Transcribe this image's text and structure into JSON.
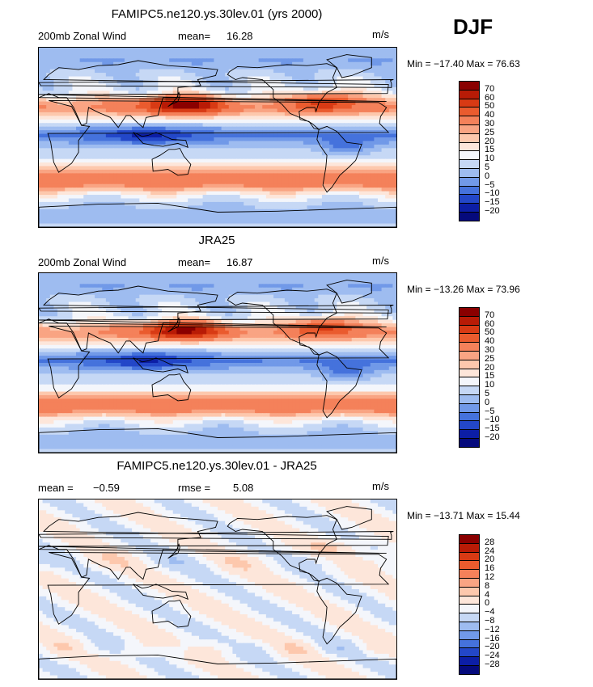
{
  "season": "DJF",
  "chart_data": [
    {
      "type": "heatmap",
      "title": "FAMIPC5.ne120.ys.30lev.01 (yrs 2000)",
      "left_label": "200mb Zonal Wind",
      "stat1_label": "mean=",
      "stat1_value": "16.28",
      "units": "m/s",
      "minmax": "Min = −17.40 Max =  76.63",
      "field": "model",
      "legend_labels": [
        "70",
        "60",
        "50",
        "40",
        "30",
        "25",
        "20",
        "15",
        "10",
        "5",
        "0",
        "−5",
        "−10",
        "−15",
        "−20"
      ],
      "legend_colors": [
        "#8a0000",
        "#b81b06",
        "#d83a14",
        "#ea5b2e",
        "#f4815a",
        "#f9a483",
        "#fdc8ad",
        "#fde6da",
        "#f4f6fb",
        "#c6d8f5",
        "#9ebcf0",
        "#7199e8",
        "#4572dc",
        "#2347c8",
        "#0c1ea6",
        "#050a7c"
      ]
    },
    {
      "type": "heatmap",
      "title": "JRA25",
      "left_label": "200mb Zonal Wind",
      "stat1_label": "mean=",
      "stat1_value": "16.87",
      "units": "m/s",
      "minmax": "Min = −13.26 Max =  73.96",
      "field": "obs",
      "legend_labels": [
        "70",
        "60",
        "50",
        "40",
        "30",
        "25",
        "20",
        "15",
        "10",
        "5",
        "0",
        "−5",
        "−10",
        "−15",
        "−20"
      ],
      "legend_colors": [
        "#8a0000",
        "#b81b06",
        "#d83a14",
        "#ea5b2e",
        "#f4815a",
        "#f9a483",
        "#fdc8ad",
        "#fde6da",
        "#f4f6fb",
        "#c6d8f5",
        "#9ebcf0",
        "#7199e8",
        "#4572dc",
        "#2347c8",
        "#0c1ea6",
        "#050a7c"
      ]
    },
    {
      "type": "heatmap",
      "title": "FAMIPC5.ne120.ys.30lev.01 - JRA25",
      "stat1_label": "mean =",
      "stat1_value": "−0.59",
      "stat2_label": "rmse =",
      "stat2_value": "5.08",
      "units": "m/s",
      "minmax": "Min = −13.71 Max =  15.44",
      "field": "diff",
      "legend_labels": [
        "28",
        "24",
        "20",
        "16",
        "12",
        "8",
        "4",
        "0",
        "−4",
        "−8",
        "−12",
        "−16",
        "−20",
        "−24",
        "−28"
      ],
      "legend_colors": [
        "#8a0000",
        "#b81b06",
        "#d83a14",
        "#ea5b2e",
        "#f4815a",
        "#f9a483",
        "#fdc8ad",
        "#fde6da",
        "#f4f6fb",
        "#c6d8f5",
        "#9ebcf0",
        "#7199e8",
        "#4572dc",
        "#2347c8",
        "#0c1ea6",
        "#050a7c"
      ]
    }
  ]
}
